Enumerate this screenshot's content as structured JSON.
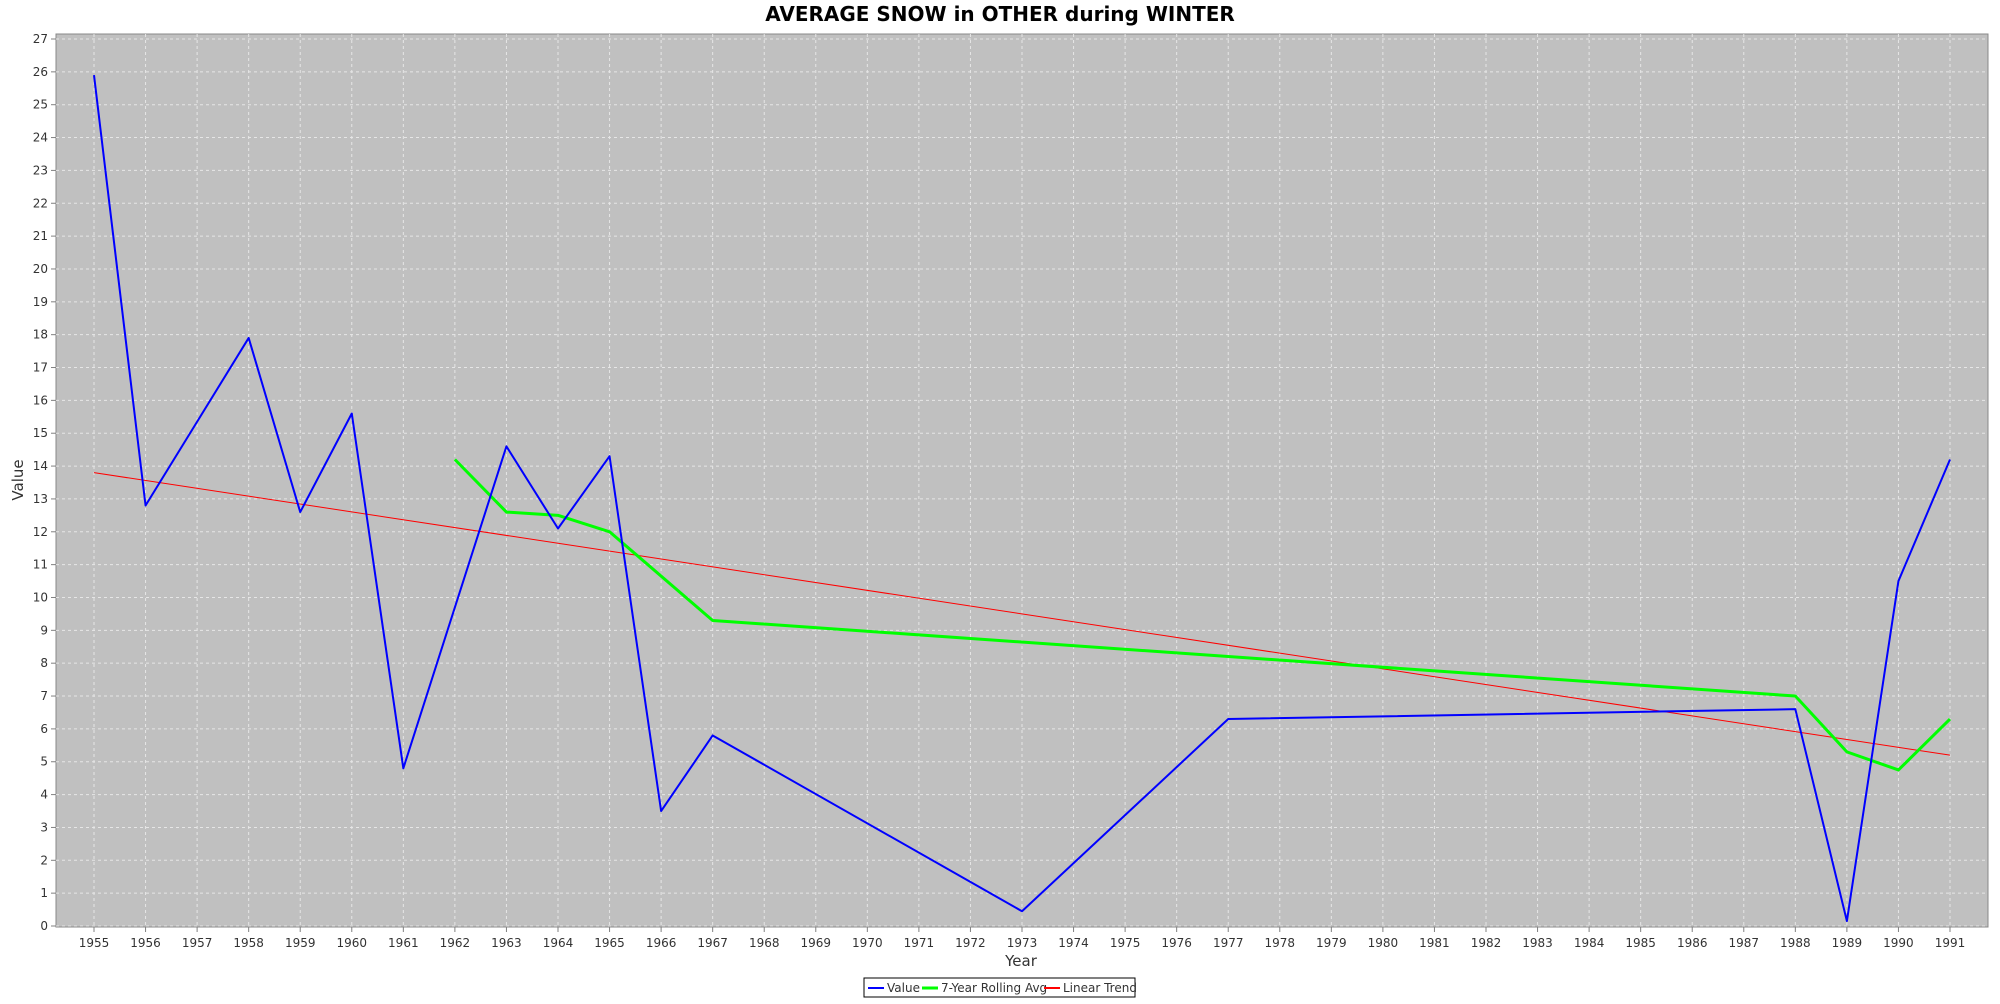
{
  "chart_data": {
    "type": "line",
    "title": "AVERAGE SNOW in OTHER during WINTER",
    "xlabel": "Year",
    "ylabel": "Value",
    "x_categories": [
      "1955",
      "1956",
      "1957",
      "1958",
      "1959",
      "1960",
      "1961",
      "1962",
      "1963",
      "1964",
      "1965",
      "1966",
      "1967",
      "1968",
      "1969",
      "1970",
      "1971",
      "1972",
      "1973",
      "1974",
      "1975",
      "1976",
      "1977",
      "1978",
      "1979",
      "1980",
      "1981",
      "1982",
      "1983",
      "1984",
      "1985",
      "1986",
      "1987",
      "1988",
      "1989",
      "1990",
      "1991"
    ],
    "y_ticks": [
      "0",
      "1",
      "2",
      "3",
      "4",
      "5",
      "6",
      "7",
      "8",
      "9",
      "10",
      "11",
      "12",
      "13",
      "14",
      "15",
      "16",
      "17",
      "18",
      "19",
      "20",
      "21",
      "22",
      "23",
      "24",
      "25",
      "26",
      "27"
    ],
    "ylim": [
      0,
      27
    ],
    "grid": true,
    "legend_position": "bottom",
    "background_color": "#c0c0c0",
    "series": [
      {
        "name": "Value",
        "color": "#0000ff",
        "line_width": 2,
        "points": [
          {
            "x": "1955",
            "y": 25.9
          },
          {
            "x": "1956",
            "y": 12.8
          },
          {
            "x": "1958",
            "y": 17.9
          },
          {
            "x": "1959",
            "y": 12.6
          },
          {
            "x": "1960",
            "y": 15.6
          },
          {
            "x": "1961",
            "y": 4.8
          },
          {
            "x": "1963",
            "y": 14.6
          },
          {
            "x": "1964",
            "y": 12.1
          },
          {
            "x": "1965",
            "y": 14.3
          },
          {
            "x": "1966",
            "y": 3.5
          },
          {
            "x": "1967",
            "y": 5.8
          },
          {
            "x": "1973",
            "y": 0.45
          },
          {
            "x": "1977",
            "y": 6.3
          },
          {
            "x": "1988",
            "y": 6.6
          },
          {
            "x": "1989",
            "y": 0.15
          },
          {
            "x": "1990",
            "y": 10.5
          },
          {
            "x": "1991",
            "y": 14.2
          }
        ]
      },
      {
        "name": "7-Year Rolling Avg",
        "color": "#00ff00",
        "line_width": 3,
        "points": [
          {
            "x": "1962",
            "y": 14.2
          },
          {
            "x": "1963",
            "y": 12.6
          },
          {
            "x": "1964",
            "y": 12.5
          },
          {
            "x": "1965",
            "y": 12.0
          },
          {
            "x": "1967",
            "y": 9.3
          },
          {
            "x": "1988",
            "y": 7.0
          },
          {
            "x": "1989",
            "y": 5.3
          },
          {
            "x": "1990",
            "y": 4.75
          },
          {
            "x": "1991",
            "y": 6.3
          }
        ]
      },
      {
        "name": "Linear Trend",
        "color": "#ff0000",
        "line_width": 1,
        "points": [
          {
            "x": "1955",
            "y": 13.8
          },
          {
            "x": "1991",
            "y": 5.2
          }
        ]
      }
    ]
  }
}
